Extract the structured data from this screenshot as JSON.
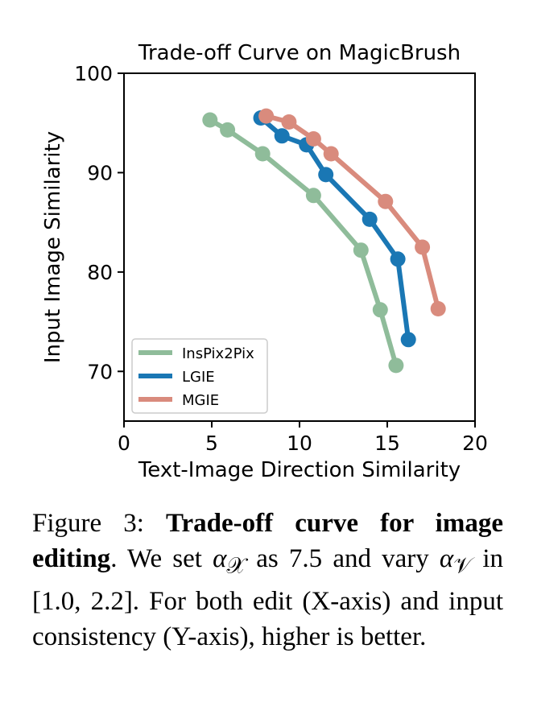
{
  "chart_data": {
    "type": "line",
    "title": "Trade-off Curve on MagicBrush",
    "xlabel": "Text-Image Direction Similarity",
    "ylabel": "Input Image Similarity",
    "xlim": [
      0,
      20
    ],
    "ylim": [
      65,
      100
    ],
    "xticks": [
      "0",
      "5",
      "10",
      "15",
      "20"
    ],
    "yticks": [
      "70",
      "80",
      "90",
      "100"
    ],
    "grid": false,
    "legend_position": "lower-left",
    "series": [
      {
        "name": "InsPix2Pix",
        "color": "#8fbc9a",
        "x": [
          4.9,
          5.9,
          7.9,
          10.8,
          13.5,
          14.6,
          15.5
        ],
        "y": [
          95.3,
          94.3,
          91.9,
          87.7,
          82.2,
          76.2,
          70.6
        ]
      },
      {
        "name": "LGIE",
        "color": "#1a77b4",
        "x": [
          7.8,
          9.0,
          10.4,
          11.5,
          14.0,
          15.6,
          16.2
        ],
        "y": [
          95.5,
          93.7,
          92.8,
          89.8,
          85.3,
          81.3,
          73.2
        ]
      },
      {
        "name": "MGIE",
        "color": "#d98b7d",
        "x": [
          8.1,
          9.4,
          10.8,
          11.8,
          14.9,
          17.0,
          17.9
        ],
        "y": [
          95.7,
          95.1,
          93.4,
          91.9,
          87.1,
          82.5,
          76.3
        ]
      }
    ]
  },
  "caption": {
    "prefix": "Figure 3: ",
    "bold": "Trade-off curve for image editing",
    "part1": ". We set ",
    "alpha": "α",
    "sub_x": "𝒳",
    "part2": " as 7.5 and vary ",
    "sub_v": "𝒱",
    "part3": " in [1.0, 2.2]. For both edit (X-axis) and input consistency (Y-axis), higher is better."
  }
}
